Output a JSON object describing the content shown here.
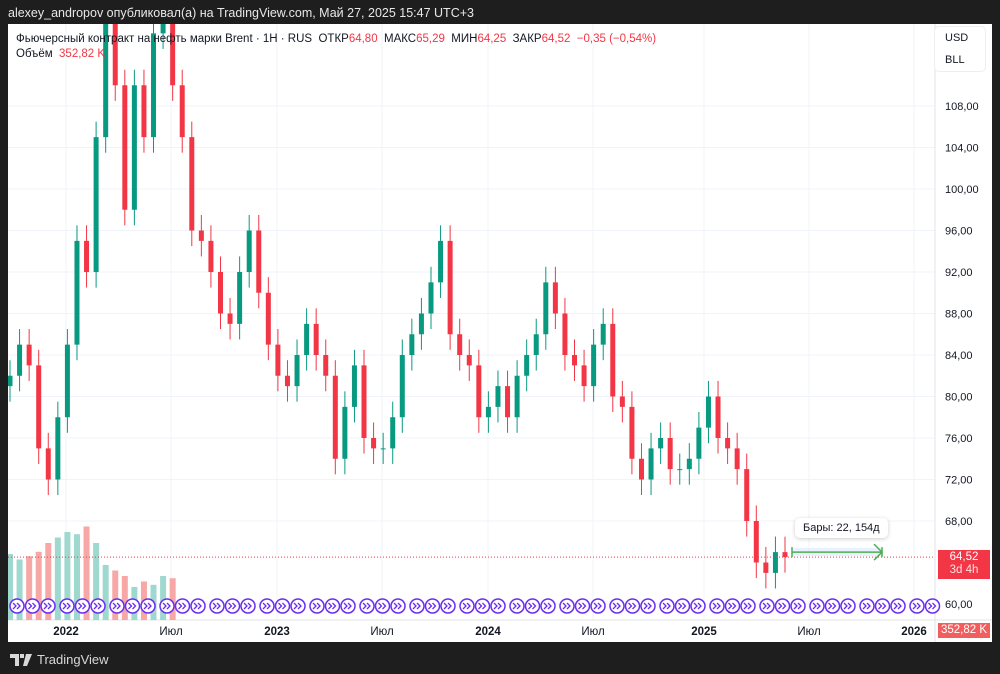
{
  "header": {
    "published": "alexey_andropov опубликовал(а) на TradingView.com, Май 27, 2025 15:47 UTC+3"
  },
  "legend": {
    "symbol": "Фьючерсный контракт на нефть марки Brent · 1H · RUS",
    "open_label": "ОТКР",
    "open": "64,80",
    "high_label": "МАКС",
    "high": "65,29",
    "low_label": "МИН",
    "low": "64,25",
    "close_label": "ЗАКР",
    "close": "64,52",
    "change": "−0,35 (−0,54%)",
    "volume_label": "Объём",
    "volume": "352,82 K"
  },
  "currency": {
    "unit": "USD",
    "sub": "BLL"
  },
  "price_tag": {
    "price": "64,52",
    "countdown": "3d 4h",
    "volume": "352,82 K"
  },
  "measure": {
    "label": "Бары: 22, 154д"
  },
  "footer": {
    "brand": "TradingView"
  },
  "colors": {
    "up": "#089981",
    "down": "#f23645",
    "vol_up": "#9fd8cf",
    "vol_down": "#f7a8a6",
    "event": "#6a2cf0"
  },
  "chart_data": {
    "type": "candlestick",
    "y_ticks": [
      "108,00",
      "104,00",
      "100,00",
      "96,00",
      "92,00",
      "88,00",
      "84,00",
      "80,00",
      "76,00",
      "72,00",
      "68,00",
      "60,00"
    ],
    "y_tick_values": [
      108,
      104,
      100,
      96,
      92,
      88,
      84,
      80,
      76,
      72,
      68,
      60
    ],
    "x_ticks": [
      {
        "label": "2022",
        "bold": true
      },
      {
        "label": "Июл"
      },
      {
        "label": "2023",
        "bold": true
      },
      {
        "label": "Июл"
      },
      {
        "label": "2024",
        "bold": true
      },
      {
        "label": "Июл"
      },
      {
        "label": "2025",
        "bold": true
      },
      {
        "label": "Июл"
      },
      {
        "label": "2026",
        "bold": true
      }
    ],
    "closes": [
      82,
      85,
      83,
      75,
      72,
      78,
      85,
      95,
      92,
      105,
      120,
      110,
      98,
      110,
      105,
      115,
      120,
      110,
      105,
      96,
      95,
      92,
      88,
      87,
      92,
      96,
      90,
      85,
      82,
      81,
      84,
      87,
      84,
      82,
      74,
      79,
      83,
      76,
      75,
      75,
      78,
      84,
      86,
      88,
      91,
      95,
      86,
      84,
      83,
      78,
      79,
      81,
      78,
      82,
      84,
      86,
      91,
      88,
      84,
      83,
      81,
      85,
      87,
      80,
      79,
      74,
      72,
      75,
      76,
      73,
      73,
      74,
      77,
      80,
      76,
      75,
      73,
      68,
      64,
      63,
      65,
      64.52
    ],
    "volumes": [
      60,
      55,
      58,
      62,
      70,
      75,
      80,
      78,
      85,
      70,
      50,
      45,
      40,
      30,
      35,
      32,
      40,
      38
    ],
    "last_price": 64.52
  }
}
